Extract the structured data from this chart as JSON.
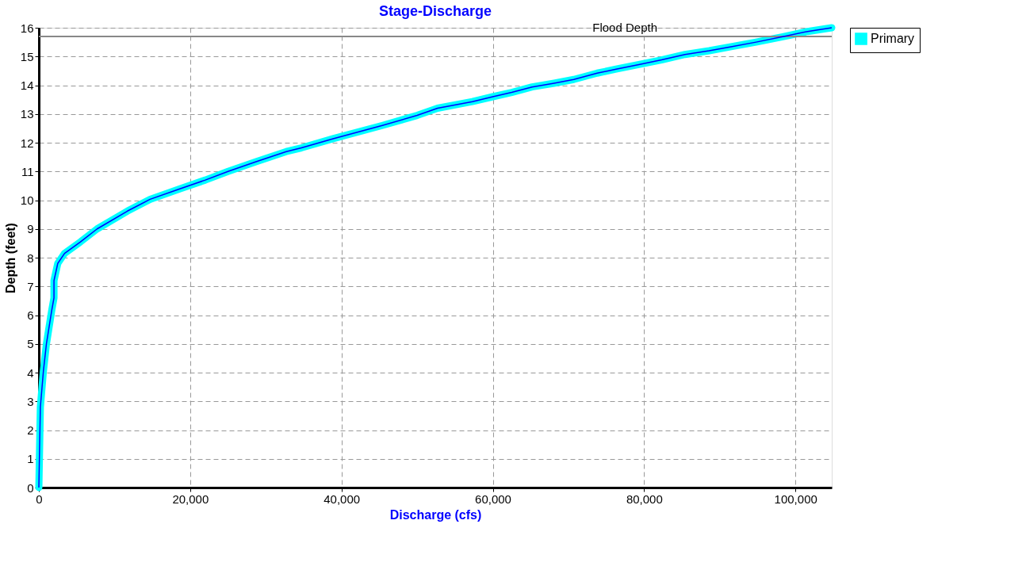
{
  "chart_data": {
    "type": "line",
    "title": "Stage-Discharge",
    "xlabel": "Discharge  (cfs)",
    "ylabel": "Depth  (feet)",
    "x": [
      0,
      200,
      600,
      1000,
      1700,
      2000,
      2000,
      2500,
      3400,
      5500,
      7700,
      11700,
      14700,
      18700,
      22000,
      25000,
      28700,
      32700,
      34700,
      38900,
      45400,
      50000,
      52700,
      57300,
      60000,
      62500,
      65200,
      68100,
      70700,
      73800,
      76300,
      79300,
      82300,
      85400,
      88600,
      91500,
      94800,
      98200,
      101600,
      104800
    ],
    "series": [
      {
        "name": "Primary",
        "color": "#00ffff",
        "values": [
          0,
          2.8,
          4.05,
          5.0,
          6.16,
          6.6,
          7.2,
          7.8,
          8.15,
          8.55,
          9.0,
          9.62,
          10.03,
          10.4,
          10.7,
          11.0,
          11.34,
          11.69,
          11.82,
          12.14,
          12.6,
          12.95,
          13.2,
          13.43,
          13.6,
          13.75,
          13.94,
          14.07,
          14.2,
          14.42,
          14.56,
          14.72,
          14.88,
          15.07,
          15.2,
          15.34,
          15.5,
          15.68,
          15.87,
          16.0
        ]
      }
    ],
    "xlim": [
      0,
      104800
    ],
    "ylim": [
      0,
      16
    ],
    "xticks": [
      0,
      {
        "value": 20000,
        "label": "20,000"
      },
      {
        "value": 40000,
        "label": "40,000"
      },
      {
        "value": 60000,
        "label": "60,000"
      },
      {
        "value": 80000,
        "label": "80,000"
      },
      {
        "value": 100000,
        "label": "100,000"
      }
    ],
    "yticks": [
      0,
      1,
      2,
      3,
      4,
      5,
      6,
      7,
      8,
      9,
      10,
      11,
      12,
      13,
      14,
      15,
      16
    ],
    "ref_lines": [
      {
        "axis": "y",
        "value": 15.7,
        "label": "Flood Depth",
        "color": "#888888"
      }
    ],
    "grid": true,
    "legend": "top right",
    "marker": "none",
    "line_style": "solid"
  }
}
